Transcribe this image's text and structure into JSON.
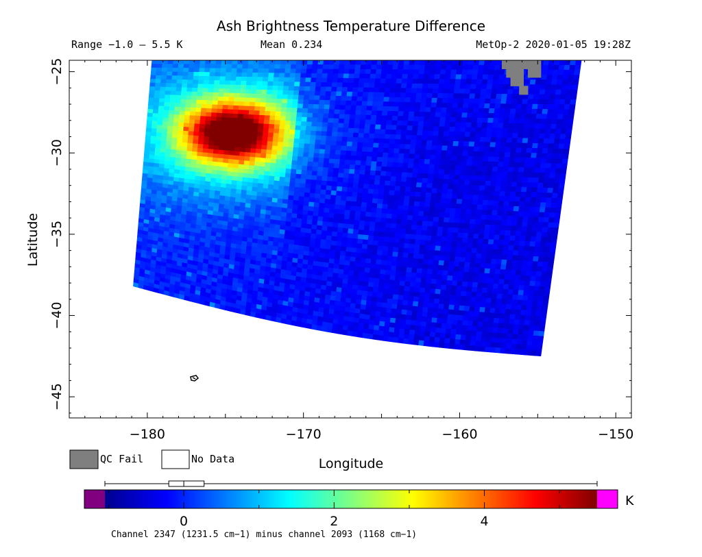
{
  "title": "Ash Brightness Temperature Difference",
  "subtitle": {
    "range": "Range −1.0 – 5.5 K",
    "mean": "Mean 0.234",
    "satellite_time": "MetOp-2 2020-01-05 19:28Z"
  },
  "legend": {
    "qc_fail": "QC Fail",
    "no_data": "No Data",
    "qc_fail_color": "#7f7f7f",
    "no_data_color": "#ffffff"
  },
  "colorbar": {
    "unit": "K",
    "ticks": [
      "0",
      "2",
      "4"
    ],
    "tick_values": [
      0,
      2,
      4
    ],
    "range": [
      -1.05,
      5.5
    ],
    "under_color": "#800080",
    "over_color": "#ff00ff",
    "boxplot": {
      "min": -1.05,
      "q1": -0.2,
      "median": 0.0,
      "q3": 0.27,
      "max": 5.5
    },
    "footnote": "Channel 2347 (1231.5 cm−1) minus channel 2093 (1168 cm−1)"
  },
  "chart_data": {
    "type": "heatmap",
    "title": "Ash Brightness Temperature Difference",
    "xlabel": "Longitude",
    "ylabel": "Latitude",
    "xlim": [
      -185,
      -149
    ],
    "ylim": [
      -46.3,
      -24.3
    ],
    "x_ticks": [
      -180,
      -170,
      -160,
      -150
    ],
    "x_tick_labels": [
      "−180",
      "−170",
      "−160",
      "−150"
    ],
    "y_ticks": [
      -25,
      -30,
      -35,
      -40,
      -45
    ],
    "y_tick_labels": [
      "−25",
      "−30",
      "−35",
      "−40",
      "−45"
    ],
    "value_range": [
      -1.0,
      5.5
    ],
    "mean": 0.234,
    "swath_corners": {
      "top_left": [
        -179.7,
        -24.3
      ],
      "top_right": [
        -152.2,
        -24.3
      ],
      "bottom_right": [
        -154.8,
        -42.5
      ],
      "bottom_left": [
        -180.9,
        -38.2
      ]
    },
    "ash_plume": {
      "center_lon": -174.5,
      "center_lat": -28.8,
      "peak_value": 5.2
    },
    "qc_fail_region": {
      "lon": [
        -157.3,
        -154.8
      ],
      "lat": [
        -26.4,
        -24.3
      ]
    },
    "grid": false,
    "legend": "bottom-left"
  }
}
